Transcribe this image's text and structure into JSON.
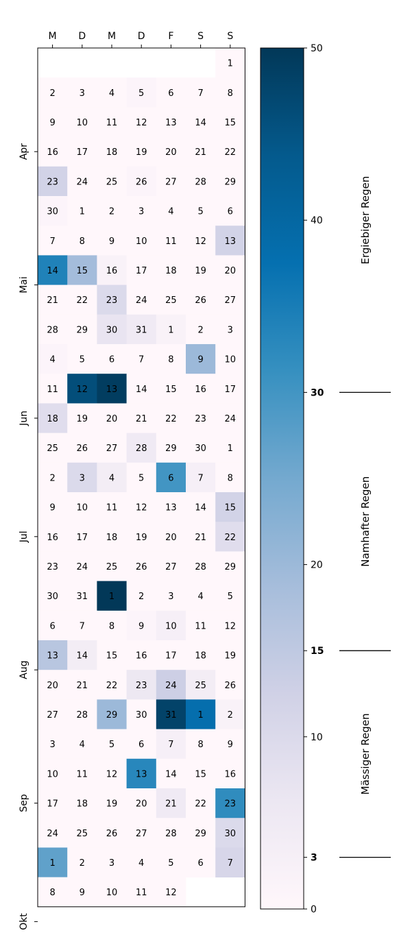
{
  "chart_data": {
    "type": "heatmap",
    "title": "",
    "xlabel": "",
    "ylabel": "",
    "weekday_labels": [
      "M",
      "D",
      "M",
      "D",
      "F",
      "S",
      "S"
    ],
    "month_labels": [
      {
        "label": "Apr",
        "row": 3.5
      },
      {
        "label": "Mai",
        "row": 8
      },
      {
        "label": "Jun",
        "row": 12.5
      },
      {
        "label": "Jul",
        "row": 16.5
      },
      {
        "label": "Aug",
        "row": 21
      },
      {
        "label": "Sep",
        "row": 25.5
      },
      {
        "label": "Okt",
        "row": 29.5
      }
    ],
    "start_weekday": 6,
    "days": [
      0,
      0,
      0,
      0,
      1,
      0,
      0,
      0,
      0,
      0,
      0,
      0,
      0,
      0,
      0,
      0,
      0,
      0,
      0,
      0,
      0,
      0,
      12,
      0,
      0,
      1,
      0,
      0,
      0,
      1,
      0,
      0,
      0,
      0,
      0,
      0,
      0,
      0,
      0,
      0,
      0,
      0,
      12,
      34,
      19,
      2,
      0,
      0,
      0,
      0,
      0,
      0,
      10,
      0,
      0,
      0,
      0,
      0,
      0,
      7,
      5,
      2,
      0,
      0,
      1,
      0,
      0,
      0,
      0,
      20,
      0,
      0,
      46,
      49,
      0,
      0,
      0,
      0,
      9,
      0,
      0,
      0,
      0,
      0,
      0,
      0,
      0,
      0,
      5,
      0,
      0,
      0,
      0,
      10,
      4,
      0,
      30,
      3,
      0,
      0,
      0,
      0,
      0,
      0,
      0,
      12,
      0,
      0,
      0,
      0,
      0,
      0,
      9,
      0,
      0,
      0,
      0,
      0,
      0,
      0,
      0,
      0,
      50,
      0,
      0,
      0,
      0,
      0,
      0,
      0,
      1,
      3,
      0,
      0,
      16,
      4,
      0,
      0,
      0,
      0,
      0,
      0,
      0,
      0,
      6,
      13,
      4,
      0,
      0,
      0,
      20,
      0,
      48,
      38,
      2,
      0,
      0,
      0,
      0,
      3,
      0,
      0,
      0,
      0,
      0,
      33,
      0,
      0,
      0,
      0,
      0,
      0,
      0,
      5,
      0,
      32,
      0,
      0,
      0,
      0,
      0,
      0,
      10,
      27,
      0,
      0,
      0,
      0,
      0,
      11,
      0,
      0,
      0,
      0,
      0
    ],
    "colorbar": {
      "vmin": 0,
      "vmax": 50,
      "ticks": [
        0,
        3,
        10,
        15,
        20,
        30,
        40,
        50
      ],
      "bold_ticks": [
        3,
        15,
        30
      ],
      "bands": [
        {
          "label": "Mässiger Regen",
          "from": 3,
          "to": 15
        },
        {
          "label": "Namhafter Regen",
          "from": 15,
          "to": 30
        },
        {
          "label": "Ergiebiger Regen",
          "from": 30,
          "to": 50
        }
      ]
    }
  }
}
